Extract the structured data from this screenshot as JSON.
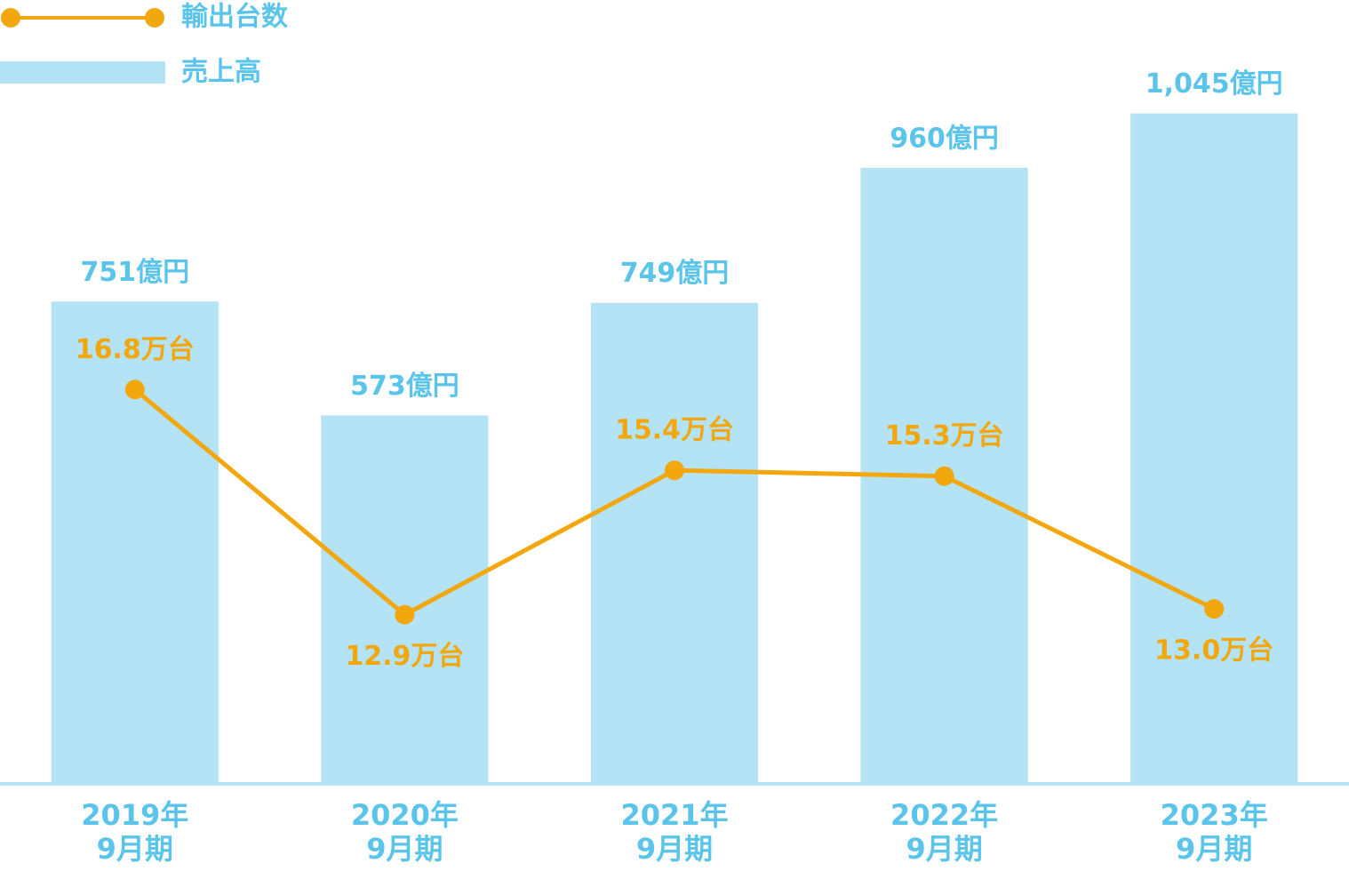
{
  "chart_data": {
    "type": "bar",
    "categories": [
      "2019年\n9月期",
      "2020年\n9月期",
      "2021年\n9月期",
      "2022年\n9月期",
      "2023年\n9月期"
    ],
    "series": [
      {
        "name": "売上高",
        "type": "bar",
        "color": "#b3e3f4",
        "label_color": "#5bc4ea",
        "values": [
          751,
          573,
          749,
          960,
          1045
        ],
        "value_labels": [
          "751億円",
          "573億円",
          "749億円",
          "960億円",
          "1,045億円"
        ]
      },
      {
        "name": "輸出台数",
        "type": "line",
        "axis": "y2",
        "color": "#f3a70f",
        "values": [
          16.8,
          12.9,
          15.4,
          15.3,
          13.0
        ],
        "value_labels": [
          "16.8万台",
          "12.9万台",
          "15.4万台",
          "15.3万台",
          "13.0万台"
        ]
      }
    ],
    "ylim": [
      0,
      1200
    ],
    "y2lim": [
      10,
      23.3
    ],
    "legend": "top-left"
  }
}
